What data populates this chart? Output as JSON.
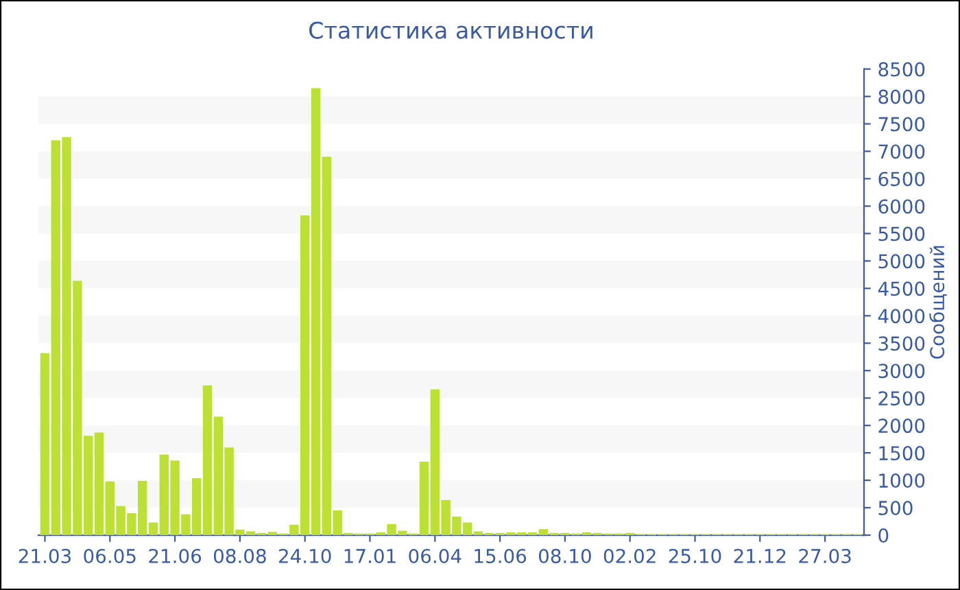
{
  "chart_data": {
    "type": "bar",
    "title": "Статистика активности",
    "ylabel": "Сообщений",
    "categories": [
      "21.03",
      null,
      null,
      null,
      null,
      null,
      "06.05",
      null,
      null,
      null,
      null,
      null,
      "21.06",
      null,
      null,
      null,
      null,
      null,
      "08.08",
      null,
      null,
      null,
      null,
      null,
      "24.10",
      null,
      null,
      null,
      null,
      null,
      "17.01",
      null,
      null,
      null,
      null,
      null,
      "06.04",
      null,
      null,
      null,
      null,
      null,
      "15.06",
      null,
      null,
      null,
      null,
      null,
      "08.10",
      null,
      null,
      null,
      null,
      null,
      "02.02",
      null,
      null,
      null,
      null,
      null,
      "25.10",
      null,
      null,
      null,
      null,
      null,
      "21.12",
      null,
      null,
      null,
      null,
      null,
      "27.03",
      null,
      null,
      null
    ],
    "values": [
      3320,
      7200,
      7260,
      4640,
      1810,
      1870,
      980,
      530,
      400,
      990,
      230,
      1470,
      1360,
      380,
      1040,
      2730,
      2160,
      1600,
      100,
      70,
      40,
      60,
      30,
      190,
      5830,
      8150,
      6900,
      450,
      40,
      30,
      30,
      50,
      200,
      80,
      30,
      1340,
      2660,
      640,
      340,
      230,
      70,
      40,
      40,
      50,
      50,
      50,
      110,
      40,
      40,
      30,
      50,
      40,
      30,
      30,
      40,
      20,
      20,
      20,
      20,
      20,
      20,
      20,
      20,
      20,
      20,
      20,
      20,
      20,
      20,
      20,
      20,
      20,
      20,
      20,
      20,
      20
    ],
    "color": "#bde034",
    "ylim": [
      0,
      8500
    ],
    "yticks": [
      0,
      500,
      1000,
      1500,
      2000,
      2500,
      3000,
      3500,
      4000,
      4500,
      5000,
      5500,
      6000,
      6500,
      7000,
      7500,
      8000,
      8500
    ],
    "bands": [
      {
        "axis": "y",
        "from": 500,
        "to": 1000,
        "color": "#f7f7f7"
      },
      {
        "axis": "y",
        "from": 1500,
        "to": 2000,
        "color": "#f7f7f7"
      },
      {
        "axis": "y",
        "from": 2500,
        "to": 3000,
        "color": "#f7f7f7"
      },
      {
        "axis": "y",
        "from": 3500,
        "to": 4000,
        "color": "#f7f7f7"
      },
      {
        "axis": "y",
        "from": 4500,
        "to": 5000,
        "color": "#f7f7f7"
      },
      {
        "axis": "y",
        "from": 5500,
        "to": 6000,
        "color": "#f7f7f7"
      },
      {
        "axis": "y",
        "from": 6500,
        "to": 7000,
        "color": "#f7f7f7"
      },
      {
        "axis": "y",
        "from": 7500,
        "to": 8000,
        "color": "#f7f7f7"
      }
    ]
  }
}
